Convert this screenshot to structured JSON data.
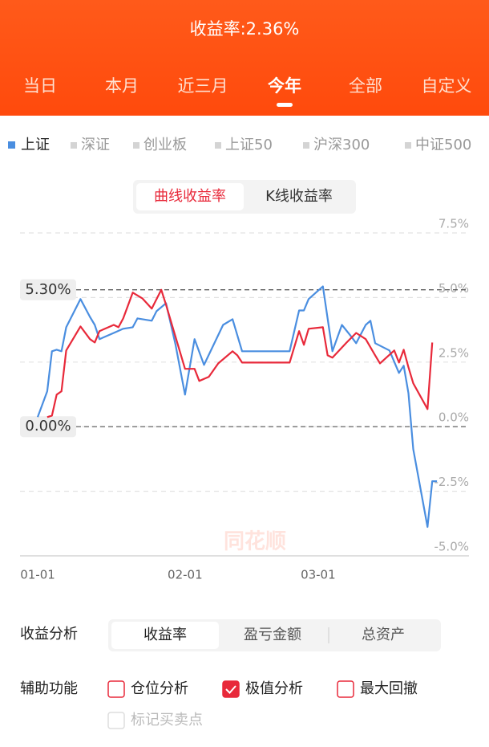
{
  "header": {
    "title": "收益率:2.36%",
    "tabs": [
      "当日",
      "本月",
      "近三月",
      "今年",
      "全部",
      "自定义"
    ],
    "active_tab": 3
  },
  "indices": [
    "深证",
    "创业板",
    "上证50",
    "沪深300",
    "中证500"
  ],
  "chart_toggle": {
    "options": [
      "曲线收益率",
      "K线收益率"
    ],
    "active": 0
  },
  "chart_data": {
    "type": "line",
    "watermark": "同花顺",
    "ylim": [
      -5,
      7.5
    ],
    "yticks": [
      {
        "value": 7.5,
        "label": "7.5%"
      },
      {
        "value": 5,
        "label": "5.0%"
      },
      {
        "value": 2.5,
        "label": "2.5%"
      },
      {
        "value": 0,
        "label": "0.0%"
      },
      {
        "value": -2.5,
        "label": "-2.5%"
      },
      {
        "value": -5,
        "label": "-5.0%"
      }
    ],
    "xticks": [
      "01-01",
      "02-01",
      "03-01"
    ],
    "grid": true,
    "annotations": [
      {
        "value": 5.3,
        "label": "5.30%"
      },
      {
        "value": 0,
        "label": "0.00%"
      }
    ],
    "series": [
      {
        "name": "上证",
        "color": "#4a8ee0",
        "x": [
          "01-01",
          "01-03",
          "01-04",
          "01-05",
          "01-06",
          "01-07",
          "01-10",
          "01-12",
          "01-13",
          "01-14",
          "01-17",
          "01-19",
          "01-21",
          "01-22",
          "01-25",
          "01-26",
          "01-28",
          "01-30",
          "02-01",
          "02-03",
          "02-05",
          "02-09",
          "02-11",
          "02-13",
          "02-23",
          "02-25",
          "02-26",
          "02-27",
          "03-02",
          "03-04",
          "03-06",
          "03-08",
          "03-09",
          "03-11",
          "03-12",
          "03-13",
          "03-16",
          "03-18",
          "03-19",
          "03-20",
          "03-21",
          "03-24",
          "03-25",
          "03-26"
        ],
        "values": [
          0.37,
          1.37,
          2.92,
          2.98,
          2.92,
          3.85,
          4.94,
          4.25,
          3.94,
          3.39,
          3.63,
          3.79,
          3.85,
          4.19,
          4.1,
          4.47,
          4.78,
          3.17,
          1.24,
          3.39,
          2.39,
          3.94,
          4.16,
          2.92,
          2.92,
          4.5,
          4.5,
          4.94,
          5.43,
          2.92,
          3.94,
          3.48,
          3.23,
          3.94,
          4.1,
          3.23,
          2.95,
          2.08,
          2.36,
          1.3,
          -0.87,
          -3.88,
          -2.11,
          -2.11
        ]
      },
      {
        "color": "#e8293a",
        "x": [
          "01-03",
          "01-04",
          "01-05",
          "01-06",
          "01-07",
          "01-10",
          "01-12",
          "01-13",
          "01-14",
          "01-17",
          "01-18",
          "01-19",
          "01-21",
          "01-23",
          "01-25",
          "01-27",
          "01-28",
          "02-01",
          "02-03",
          "02-04",
          "02-06",
          "02-08",
          "02-11",
          "02-12",
          "02-13",
          "02-23",
          "02-25",
          "02-26",
          "02-27",
          "03-02",
          "03-03",
          "03-04",
          "03-07",
          "03-09",
          "03-11",
          "03-13",
          "03-14",
          "03-17",
          "03-18",
          "03-19",
          "03-20",
          "03-21",
          "03-24",
          "03-25"
        ],
        "values": [
          0.37,
          0.43,
          1.24,
          1.37,
          2.95,
          3.88,
          3.39,
          3.26,
          3.7,
          3.94,
          3.85,
          4.19,
          5.19,
          4.97,
          4.57,
          5.3,
          4.72,
          2.24,
          2.24,
          1.77,
          1.93,
          2.45,
          2.92,
          2.76,
          2.48,
          2.48,
          3.7,
          3.17,
          3.79,
          3.85,
          2.76,
          2.67,
          3.26,
          3.63,
          3.39,
          2.76,
          2.45,
          2.95,
          2.48,
          2.98,
          2.3,
          1.68,
          0.68,
          3.26
        ]
      }
    ]
  },
  "analysis": {
    "label": "收益分析",
    "options": [
      "收益率",
      "盈亏金额",
      "总资产"
    ],
    "active": 0
  },
  "aux": {
    "label": "辅助功能",
    "options": [
      {
        "label": "仓位分析",
        "checked": false
      },
      {
        "label": "极值分析",
        "checked": true
      },
      {
        "label": "最大回撤",
        "checked": false
      },
      {
        "label": "标记买卖点",
        "checked": false,
        "disabled": true
      }
    ]
  }
}
